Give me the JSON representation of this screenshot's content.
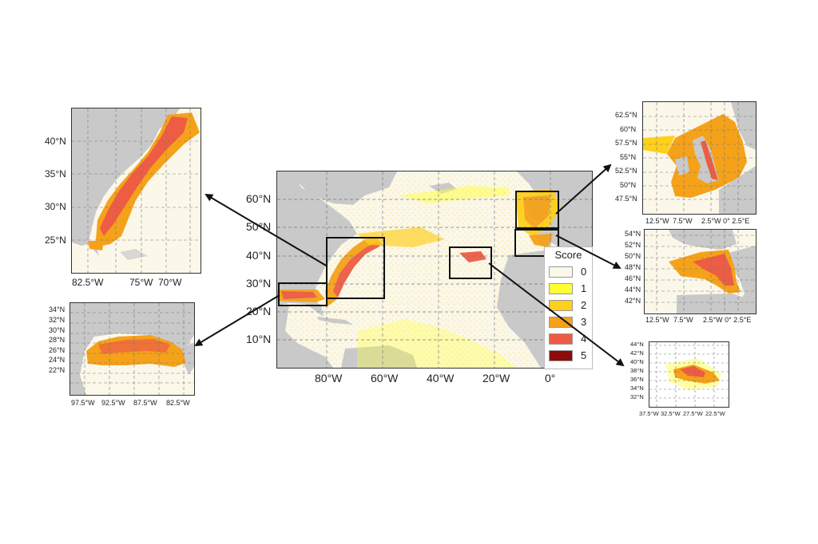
{
  "legend": {
    "title": "Score",
    "entries": [
      {
        "label": "0",
        "color": "#fbf8ea"
      },
      {
        "label": "1",
        "color": "#ffff33"
      },
      {
        "label": "2",
        "color": "#fecf1c"
      },
      {
        "label": "3",
        "color": "#f5a21a"
      },
      {
        "label": "4",
        "color": "#ee5c44"
      },
      {
        "label": "5",
        "color": "#8c0b0b"
      }
    ]
  },
  "main_map": {
    "lat_labels": [
      "60°N",
      "50°N",
      "40°N",
      "30°N",
      "20°N",
      "10°N"
    ],
    "lon_labels": [
      "80°W",
      "60°W",
      "40°W",
      "20°W",
      "0°"
    ]
  },
  "us_east_inset": {
    "lat_labels": [
      "40°N",
      "35°N",
      "30°N",
      "25°N"
    ],
    "lon_labels": [
      "82.5°W",
      "75°W",
      "70°W"
    ]
  },
  "gulf_inset": {
    "lat_labels": [
      "34°N",
      "32°N",
      "30°N",
      "28°N",
      "26°N",
      "24°N",
      "22°N"
    ],
    "lon_labels": [
      "97.5°W",
      "92.5°W",
      "87.5°W",
      "82.5°W"
    ]
  },
  "uk_inset": {
    "lat_labels": [
      "62.5°N",
      "60°N",
      "57.5°N",
      "55°N",
      "52.5°N",
      "50°N",
      "47.5°N"
    ],
    "lon_labels": [
      "12.5°W",
      "7.5°W",
      "2.5°W 0° 2.5°E"
    ]
  },
  "biscay_inset": {
    "lat_labels": [
      "54°N",
      "52°N",
      "50°N",
      "48°N",
      "46°N",
      "44°N",
      "42°N"
    ],
    "lon_labels": [
      "12.5°W",
      "7.5°W",
      "2.5°W 0° 2.5°E"
    ]
  },
  "azores_inset": {
    "lat_labels": [
      "44°N",
      "42°N",
      "40°N",
      "38°N",
      "36°N",
      "34°N",
      "32°N"
    ],
    "lon_labels": [
      "37.5°W",
      "32.5°W",
      "27.5°W",
      "22.5°W"
    ]
  },
  "colors": {
    "land": "#c9c9c9",
    "ocean": "#fbf8ea",
    "frame": "#111111"
  }
}
